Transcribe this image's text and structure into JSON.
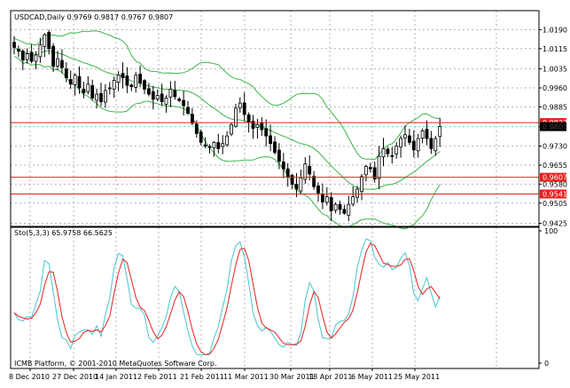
{
  "chart_data": [
    {
      "type": "candlestick",
      "title": "USDCAD,Daily  0.9769 0.9817 0.9767 0.9807",
      "ylim": [
        0.9413,
        1.0265
      ],
      "y_ticks": [
        "1.0190",
        "1.0115",
        "1.0035",
        "0.9960",
        "0.9885",
        "0.9807",
        "0.9730",
        "0.9655",
        "0.9580",
        "0.9505",
        "0.9425"
      ],
      "x_ticks": [
        "8 Dec 2010",
        "27 Dec 2010",
        "14 Jan 2011",
        "2 Feb 2011",
        "21 Feb 2011",
        "11 Mar 2011",
        "30 Mar 2011",
        "18 Apr 2011",
        "6 May 2011",
        "25 May 2011"
      ],
      "grid": true,
      "closes": [
        1.012,
        1.0105,
        1.007,
        1.0095,
        1.0065,
        1.009,
        1.013,
        1.017,
        1.0115,
        1.0045,
        1.0075,
        1.004,
        1.0,
        0.9975,
        1.001,
        0.996,
        0.994,
        0.9975,
        0.992,
        0.9935,
        0.9905,
        0.995,
        0.996,
        0.999,
        1.001,
        1.0,
        0.997,
        0.9965,
        1.001,
        0.998,
        0.9955,
        0.9935,
        0.9915,
        0.993,
        0.9905,
        0.992,
        0.9955,
        0.9925,
        0.991,
        0.989,
        0.986,
        0.982,
        0.978,
        0.9745,
        0.973,
        0.9725,
        0.9745,
        0.972,
        0.974,
        0.977,
        0.9815,
        0.988,
        0.99,
        0.9855,
        0.9825,
        0.98,
        0.9815,
        0.9795,
        0.977,
        0.974,
        0.9705,
        0.967,
        0.964,
        0.961,
        0.958,
        0.956,
        0.9605,
        0.966,
        0.962,
        0.957,
        0.9545,
        0.951,
        0.953,
        0.9475,
        0.95,
        0.948,
        0.9465,
        0.95,
        0.953,
        0.956,
        0.961,
        0.965,
        0.964,
        0.96,
        0.969,
        0.972,
        0.97,
        0.969,
        0.973,
        0.976,
        0.9775,
        0.9745,
        0.9715,
        0.976,
        0.979,
        0.976,
        0.972,
        0.976,
        0.9807
      ],
      "bollinger": {
        "period": 20,
        "deviation": 2,
        "color": "#3cb54a"
      },
      "hlines": [
        {
          "label": "0.9823",
          "value": 0.9823,
          "color": "#e8201d"
        },
        {
          "label": "0.9607",
          "value": 0.9607,
          "color": "#e8201d"
        },
        {
          "label": "0.9541",
          "value": 0.9541,
          "color": "#e8201d"
        }
      ],
      "current_price": {
        "label": "0.9807",
        "value": 0.9807
      }
    },
    {
      "type": "line",
      "title": "Sto(5,3,3) 65.9758 66.5625",
      "ylim": [
        0,
        100
      ],
      "y_ticks": [
        "100",
        "0"
      ],
      "series": [
        {
          "color": "#49c4cf"
        },
        {
          "color": "#e8201d"
        }
      ]
    }
  ],
  "footer": {
    "copyright": "ICMB Platform, © 2001-2010 MetaQuotes Software Corp."
  }
}
